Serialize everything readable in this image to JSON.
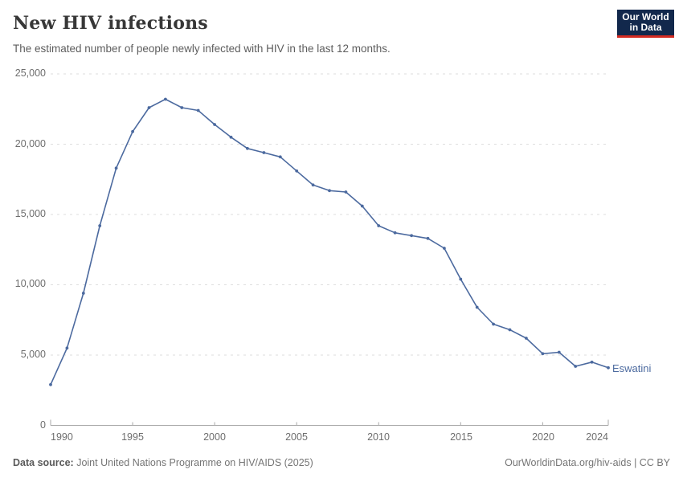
{
  "header": {
    "title": "New HIV infections",
    "subtitle": "The estimated number of people newly infected with HIV in the last 12 months.",
    "logo": {
      "line1": "Our World",
      "line2": "in Data",
      "bg_color": "#12284C",
      "accent_color": "#D42B21"
    }
  },
  "chart_data": {
    "type": "line",
    "title": "New HIV infections",
    "entity_label": "Eswatini",
    "x": [
      1990,
      1991,
      1992,
      1993,
      1994,
      1995,
      1996,
      1997,
      1998,
      1999,
      2000,
      2001,
      2002,
      2003,
      2004,
      2005,
      2006,
      2007,
      2008,
      2009,
      2010,
      2011,
      2012,
      2013,
      2014,
      2015,
      2016,
      2017,
      2018,
      2019,
      2020,
      2021,
      2022,
      2023,
      2024
    ],
    "series": [
      {
        "name": "Eswatini",
        "color": "#4C6A9F",
        "values": [
          2900,
          5500,
          9400,
          14200,
          18300,
          20900,
          22600,
          23200,
          22600,
          22400,
          21400,
          20500,
          19700,
          19400,
          19100,
          18100,
          17100,
          16700,
          16600,
          15600,
          14200,
          13700,
          13500,
          13300,
          12600,
          10400,
          8400,
          7200,
          6800,
          6200,
          5100,
          5200,
          4200,
          4500,
          4100
        ]
      }
    ],
    "xlim": [
      1990,
      2024
    ],
    "ylim": [
      0,
      25000
    ],
    "x_ticks": [
      1990,
      1995,
      2000,
      2005,
      2010,
      2015,
      2020,
      2024
    ],
    "x_tick_labels": [
      "1990",
      "1995",
      "2000",
      "2005",
      "2010",
      "2015",
      "2020",
      "2024"
    ],
    "y_ticks": [
      0,
      5000,
      10000,
      15000,
      20000,
      25000
    ],
    "y_tick_labels": [
      "0",
      "5,000",
      "10,000",
      "15,000",
      "20,000",
      "25,000"
    ],
    "grid": "horizontal-dashed",
    "legend_position": "end-of-line",
    "colors": {
      "grid": "#dedede",
      "axis": "#a8a8a8",
      "tick_text": "#6e6e6e"
    }
  },
  "footer": {
    "source_label": "Data source:",
    "source_text": " Joint United Nations Programme on HIV/AIDS (2025)",
    "credit": "OurWorldinData.org/hiv-aids | CC BY"
  }
}
